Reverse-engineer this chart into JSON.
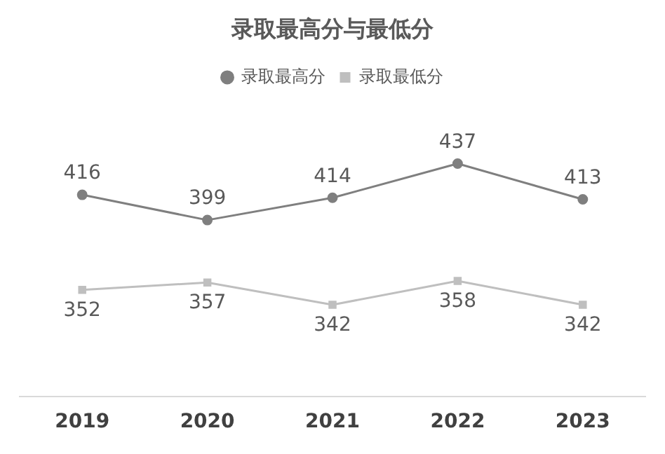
{
  "chart_data": {
    "type": "line",
    "title": "录取最高分与最低分",
    "categories": [
      "2019",
      "2020",
      "2021",
      "2022",
      "2023"
    ],
    "series": [
      {
        "name": "录取最高分",
        "color": "#7f7f7f",
        "marker": "circle",
        "values": [
          416,
          399,
          414,
          437,
          413
        ]
      },
      {
        "name": "录取最低分",
        "color": "#bfbfbf",
        "marker": "square",
        "values": [
          352,
          357,
          342,
          358,
          342
        ]
      }
    ],
    "data_labels": true,
    "legend": "top",
    "grid": false,
    "tick_labels": "x"
  }
}
